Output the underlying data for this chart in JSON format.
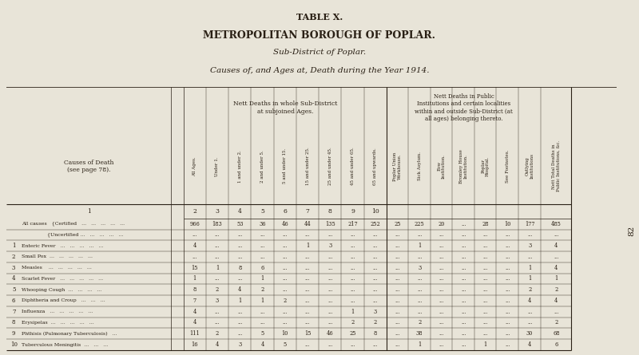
{
  "title1": "TABLE X.",
  "title2": "METROPOLITAN BOROUGH OF POPLAR.",
  "title3": "Sub-District of Poplar.",
  "title4": "Causes of, and Ages at, Death during the Year 1914.",
  "bg_color": "#e8e4d8",
  "text_color": "#2a2015",
  "header_group1": "Nett Deaths in whole Sub-District\nat subjoined Ages.",
  "header_group2": "Nett Deaths in Public\nInstitutions and certain localities\nwithin and outside Sub-District (at\nall ages) belonging thereto.",
  "col_headers": [
    "All Ages.",
    "Under 1.",
    "1 and under 2.",
    "2 and under 5.",
    "5 and under 15.",
    "15 and under 25.",
    "25 and under 45.",
    "45 and under 65.",
    "65 and upwards.",
    "Poplar Union\nWorkhouse.",
    "Sick Asylum.",
    "Bow\nInstitution.",
    "Bromley House\nInstitution.",
    "Poplar\nHospital.",
    "See Footnotes.",
    "Outlying\nInstitutions",
    "Nett Total Deaths in\nPublic Institutions, &c."
  ],
  "col_numbers": [
    "2",
    "3",
    "4",
    "5",
    "6",
    "7",
    "8",
    "9",
    "10",
    "",
    "",
    "",
    "",
    "",
    "",
    "",
    ""
  ],
  "rows": [
    {
      "num": "",
      "label": "All causes   {Certified   ...   ...   ...   ...   ...",
      "vals": [
        "966",
        "183",
        "53",
        "36",
        "46",
        "44",
        "135",
        "217",
        "252",
        "25",
        "225",
        "20",
        "...",
        "28",
        "10",
        "177",
        "485"
      ]
    },
    {
      "num": "",
      "label": "                {Uncertified ...   ...   ...   ...   ...",
      "vals": [
        "...",
        "...",
        "...",
        "...",
        "...",
        "...",
        "...",
        "...",
        "...",
        "...",
        "...",
        "...",
        "...",
        "...",
        "...",
        "...",
        "..."
      ]
    },
    {
      "num": "1",
      "label": "Enteric Fever   ...   ...   ...   ...   ...",
      "vals": [
        "4",
        "...",
        "...",
        "...",
        "...",
        "1",
        "3",
        "...",
        "...",
        "...",
        "1",
        "...",
        "...",
        "...",
        "...",
        "3",
        "4"
      ]
    },
    {
      "num": "2",
      "label": "Small Pox  ...   ...   ...   ...   ...",
      "vals": [
        "...",
        "...",
        "...",
        "...",
        "...",
        "...",
        "...",
        "...",
        "...",
        "...",
        "...",
        "...",
        "...",
        "...",
        "...",
        "...",
        "..."
      ]
    },
    {
      "num": "3",
      "label": "Measles    ...   ...   ...   ...   ...",
      "vals": [
        "15",
        "1",
        "8",
        "6",
        "...",
        "...",
        "...",
        "...",
        "...",
        "...",
        "3",
        "...",
        "...",
        "...",
        "...",
        "1",
        "4"
      ]
    },
    {
      "num": "4",
      "label": "Scarlet Fever   ...   ...   ...   ...   ...",
      "vals": [
        "1",
        "...",
        "...",
        "1",
        "...",
        "...",
        "...",
        "...",
        "...",
        "...",
        "...",
        "...",
        "...",
        "...",
        "...",
        "1",
        "1"
      ]
    },
    {
      "num": "5",
      "label": "Whooping Cough  ...   ...   ...   ...",
      "vals": [
        "8",
        "2",
        "4",
        "2",
        "...",
        "...",
        "...",
        "...",
        "...",
        "...",
        "...",
        "...",
        "...",
        "...",
        "...",
        "2",
        "2"
      ]
    },
    {
      "num": "6",
      "label": "Diphtheria and Croup   ...   ...   ...",
      "vals": [
        "7",
        "3",
        "1",
        "1",
        "2",
        "...",
        "...",
        "...",
        "...",
        "...",
        "...",
        "...",
        "...",
        "...",
        "...",
        "4",
        "4"
      ]
    },
    {
      "num": "7",
      "label": "Influenza   ...   ...   ...   ...   ...",
      "vals": [
        "4",
        "...",
        "...",
        "...",
        "...",
        "...",
        "...",
        "1",
        "3",
        "...",
        "...",
        "...",
        "...",
        "...",
        "...",
        "...",
        "..."
      ]
    },
    {
      "num": "8",
      "label": "Erysipelas  ...   ...   ...   ...   ...",
      "vals": [
        "4",
        "...",
        "...",
        "...",
        "...",
        "...",
        "...",
        "2",
        "2",
        "...",
        "2",
        "...",
        "...",
        "...",
        "...",
        "...",
        "2"
      ]
    },
    {
      "num": "9",
      "label": "Phthisis (Pulmonary Tuberculosis)   ...",
      "vals": [
        "111",
        "2",
        "...",
        "5",
        "10",
        "15",
        "46",
        "25",
        "8",
        "...",
        "38",
        "...",
        "...",
        "...",
        "...",
        "30",
        "68"
      ]
    },
    {
      "num": "10",
      "label": "Tuberculous Meningitis  ...   ...   ...",
      "vals": [
        "16",
        "4",
        "3",
        "4",
        "5",
        "...",
        "...",
        "...",
        "...",
        "...",
        "1",
        "...",
        "...",
        "1",
        "...",
        "4",
        "6"
      ]
    }
  ],
  "page_num": "82"
}
